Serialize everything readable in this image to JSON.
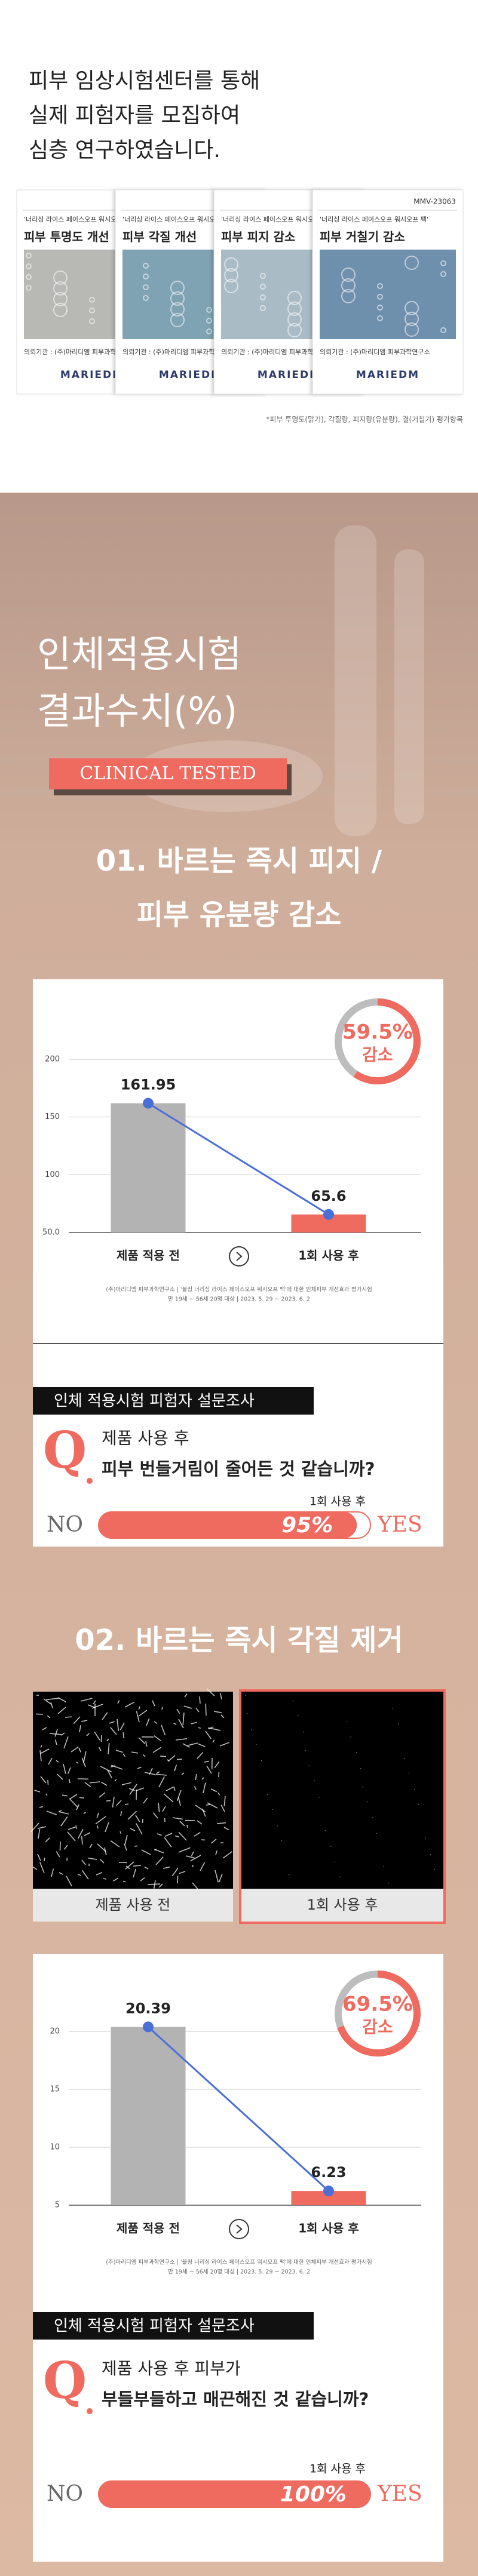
{
  "intro": {
    "lines": [
      "피부 임상시험센터를 통해",
      "실제 피험자를 모집하여",
      "심층 연구하였습니다."
    ],
    "cards": [
      {
        "product": "'너리싱 라이스 페이스오프 워시오프 팩'",
        "heading": "피부 투명도 개선",
        "client": "의뢰기관 : (주)마리디엠 피부과학연구소",
        "logo": "MARIEDM"
      },
      {
        "product": "'너리싱 라이스 페이스오프 워시오프 팩'",
        "heading": "피부 각질 개선",
        "client": "의뢰기관 : (주)마리디엠 피부과학연구소",
        "logo": "MARIEDM"
      },
      {
        "product": "'너리싱 라이스 페이스오프 워시오프 팩'",
        "heading": "피부 피지 감소",
        "client": "의뢰기관 : (주)마리디엠 피부과학연구소",
        "logo": "MARIEDM"
      },
      {
        "code": "MMV-23063",
        "product": "'너리싱 라이스 페이스오프 워시오프 팩'",
        "heading": "피부 거칠기 감소",
        "client": "의뢰기관 : (주)마리디엠 피부과학연구소",
        "logo": "MARIEDM"
      }
    ],
    "footnote": "*피부 투명도(맑기), 각질량, 피지량(유분량), 결(거칠기) 평가항목"
  },
  "results": {
    "title_lines": [
      "인체적용시험",
      "결과수치(%)"
    ],
    "badge": "CLINICAL TESTED"
  },
  "sections": [
    {
      "heading_lines": [
        "01. 바르는 즉시 피지 /",
        "피부 유분량 감소"
      ],
      "chart": {
        "type": "bar",
        "categories": [
          "제품 적용 전",
          "1회 사용 후"
        ],
        "values": [
          161.95,
          65.6
        ],
        "colors": [
          "#b3b3b3",
          "#ef6a5f"
        ],
        "line_color": "#4a6fd6",
        "ylim": [
          50,
          200
        ],
        "yticks": [
          {
            "value": 50,
            "label": "50.0"
          },
          100,
          150,
          200
        ],
        "grid": true,
        "badge": {
          "value": 59.5,
          "label": "59.5%",
          "text": "감소"
        },
        "footnote_lines": [
          "(주)마리디엠 피부과학연구소 | '블링 너리싱 라이스 페이스오프 워시오프 팩'에 대한 인체피부 개선효과 평가시험",
          "만 19세 ~ 56세 20명 대상 | 2023. 5. 29 ~ 2023. 6. 2"
        ]
      },
      "survey": {
        "header": "인체 적용시험 피험자 설문조사",
        "q": "Q",
        "question_lines": [
          "제품 사용 후",
          "피부 번들거림이 줄어든 것 같습니까?"
        ],
        "no": "NO",
        "caption": "1회 사용 후",
        "percent": {
          "value": 95,
          "label": "95%"
        },
        "yes": "YES"
      }
    },
    {
      "heading_lines": [
        "02. 바르는 즉시 각질 제거"
      ],
      "images": [
        "제품 사용 전",
        "1회 사용 후"
      ],
      "chart": {
        "type": "bar",
        "categories": [
          "제품 적용 전",
          "1회 사용 후"
        ],
        "values": [
          20.39,
          6.23
        ],
        "colors": [
          "#b3b3b3",
          "#ef6a5f"
        ],
        "line_color": "#4a6fd6",
        "ylim": [
          5,
          20
        ],
        "yticks": [
          5,
          10,
          15,
          20
        ],
        "grid": true,
        "badge": {
          "value": 69.5,
          "label": "69.5%",
          "text": "감소"
        },
        "footnote_lines": [
          "(주)마리디엠 피부과학연구소 | '블링 너리싱 라이스 페이스오프 워시오프 팩'에 대한 인체피부 개선효과 평가시험",
          "만 19세 ~ 56세 20명 대상 | 2023. 5. 29 ~ 2023. 6. 2"
        ]
      },
      "survey": {
        "header": "인체 적용시험 피험자 설문조사",
        "q": "Q",
        "question_lines": [
          "제품 사용 후 피부가",
          "부들부들하고 매끈해진 것 같습니까?"
        ],
        "no": "NO",
        "caption": "1회 사용 후",
        "percent": {
          "value": 100,
          "label": "100%"
        },
        "yes": "YES"
      }
    }
  ]
}
